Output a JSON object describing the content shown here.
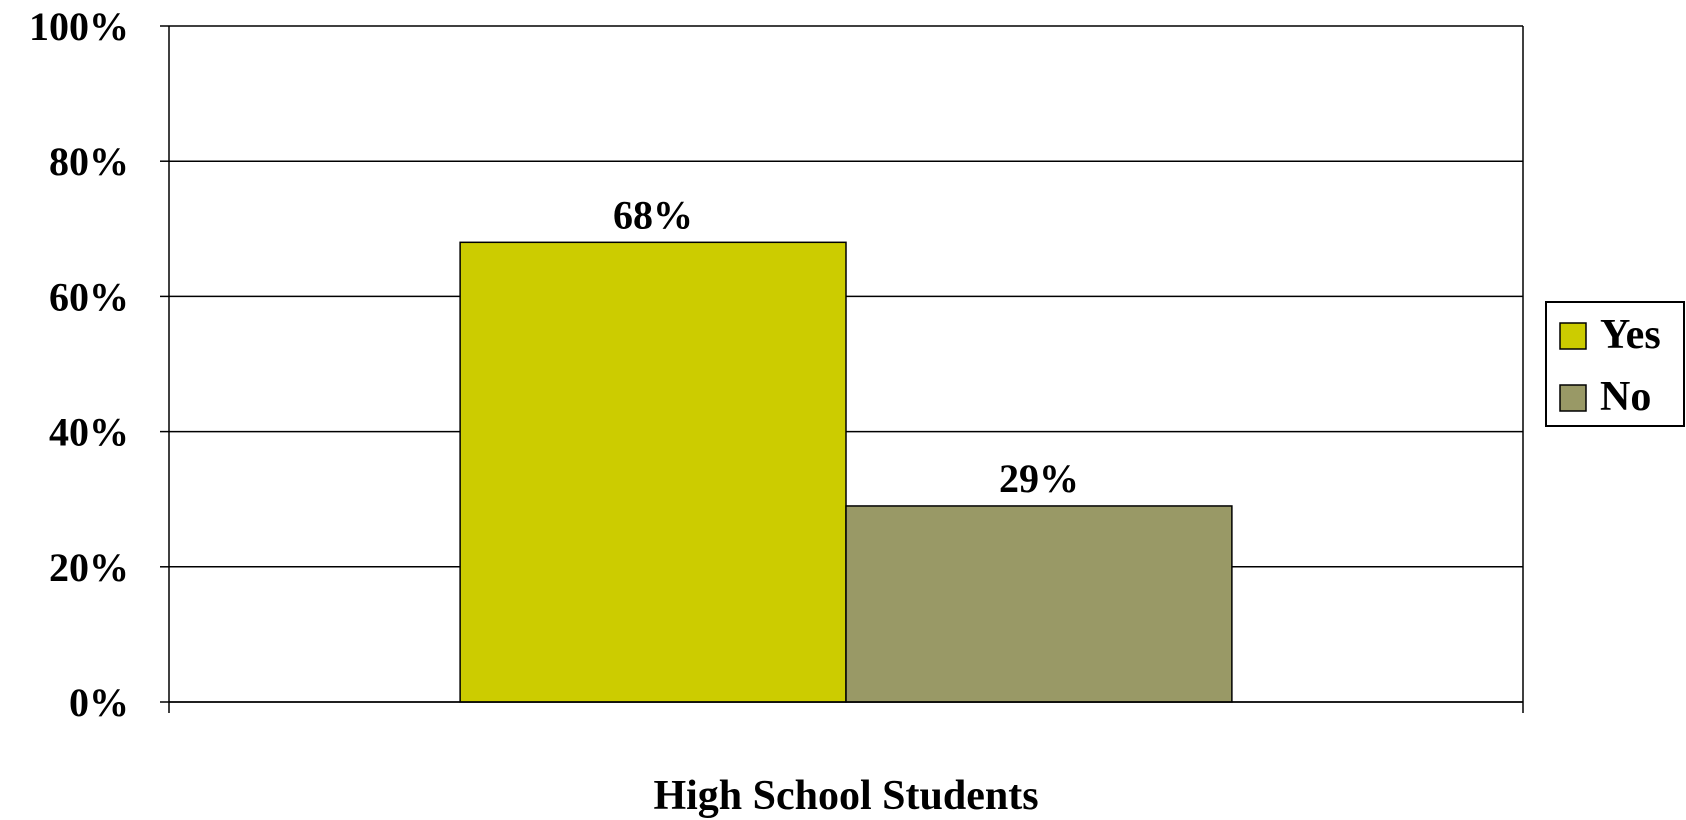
{
  "chart_data": {
    "type": "bar",
    "categories": [
      "High School Students"
    ],
    "series": [
      {
        "name": "Yes",
        "values": [
          68
        ],
        "color": "#cccc00"
      },
      {
        "name": "No",
        "values": [
          29
        ],
        "color": "#999966"
      }
    ],
    "data_labels": [
      "68%",
      "29%"
    ],
    "ylim": [
      0,
      100
    ],
    "yticks": [
      0,
      20,
      40,
      60,
      80,
      100
    ],
    "ytick_labels": [
      "0%",
      "20%",
      "40%",
      "60%",
      "80%",
      "100%"
    ],
    "grid": true,
    "legend_position": "right",
    "title": "",
    "xlabel": "",
    "ylabel": ""
  }
}
